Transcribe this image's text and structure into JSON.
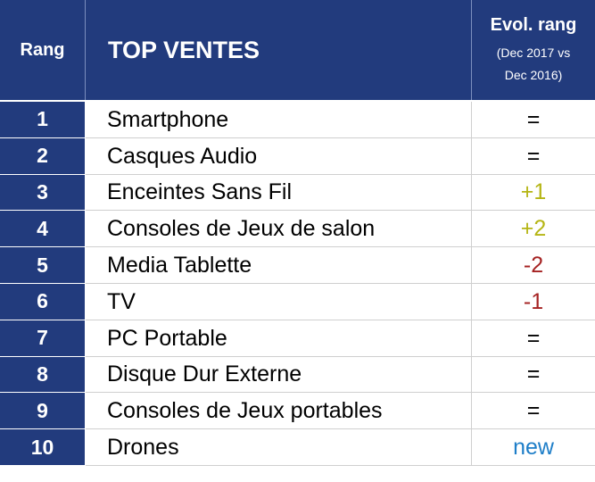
{
  "header": {
    "rang": "Rang",
    "title": "TOP VENTES",
    "evol_title": "Evol. rang",
    "evol_sub1": "(Dec 2017 vs",
    "evol_sub2": "Dec 2016)"
  },
  "colors": {
    "header_bg": "#223b7d",
    "equal": "#000000",
    "up": "#b5b514",
    "down": "#a52222",
    "new": "#1e7ec8"
  },
  "rows": [
    {
      "rank": "1",
      "name": "Smartphone",
      "evol": "=",
      "kind": "equal"
    },
    {
      "rank": "2",
      "name": "Casques Audio",
      "evol": "=",
      "kind": "equal"
    },
    {
      "rank": "3",
      "name": "Enceintes Sans Fil",
      "evol": "+1",
      "kind": "up"
    },
    {
      "rank": "4",
      "name": "Consoles de Jeux de salon",
      "evol": "+2",
      "kind": "up"
    },
    {
      "rank": "5",
      "name": "Media Tablette",
      "evol": "-2",
      "kind": "down"
    },
    {
      "rank": "6",
      "name": "TV",
      "evol": "-1",
      "kind": "down"
    },
    {
      "rank": "7",
      "name": "PC Portable",
      "evol": "=",
      "kind": "equal"
    },
    {
      "rank": "8",
      "name": "Disque Dur Externe",
      "evol": "=",
      "kind": "equal"
    },
    {
      "rank": "9",
      "name": "Consoles de Jeux portables",
      "evol": "=",
      "kind": "equal"
    },
    {
      "rank": "10",
      "name": "Drones",
      "evol": "new",
      "kind": "new"
    }
  ]
}
